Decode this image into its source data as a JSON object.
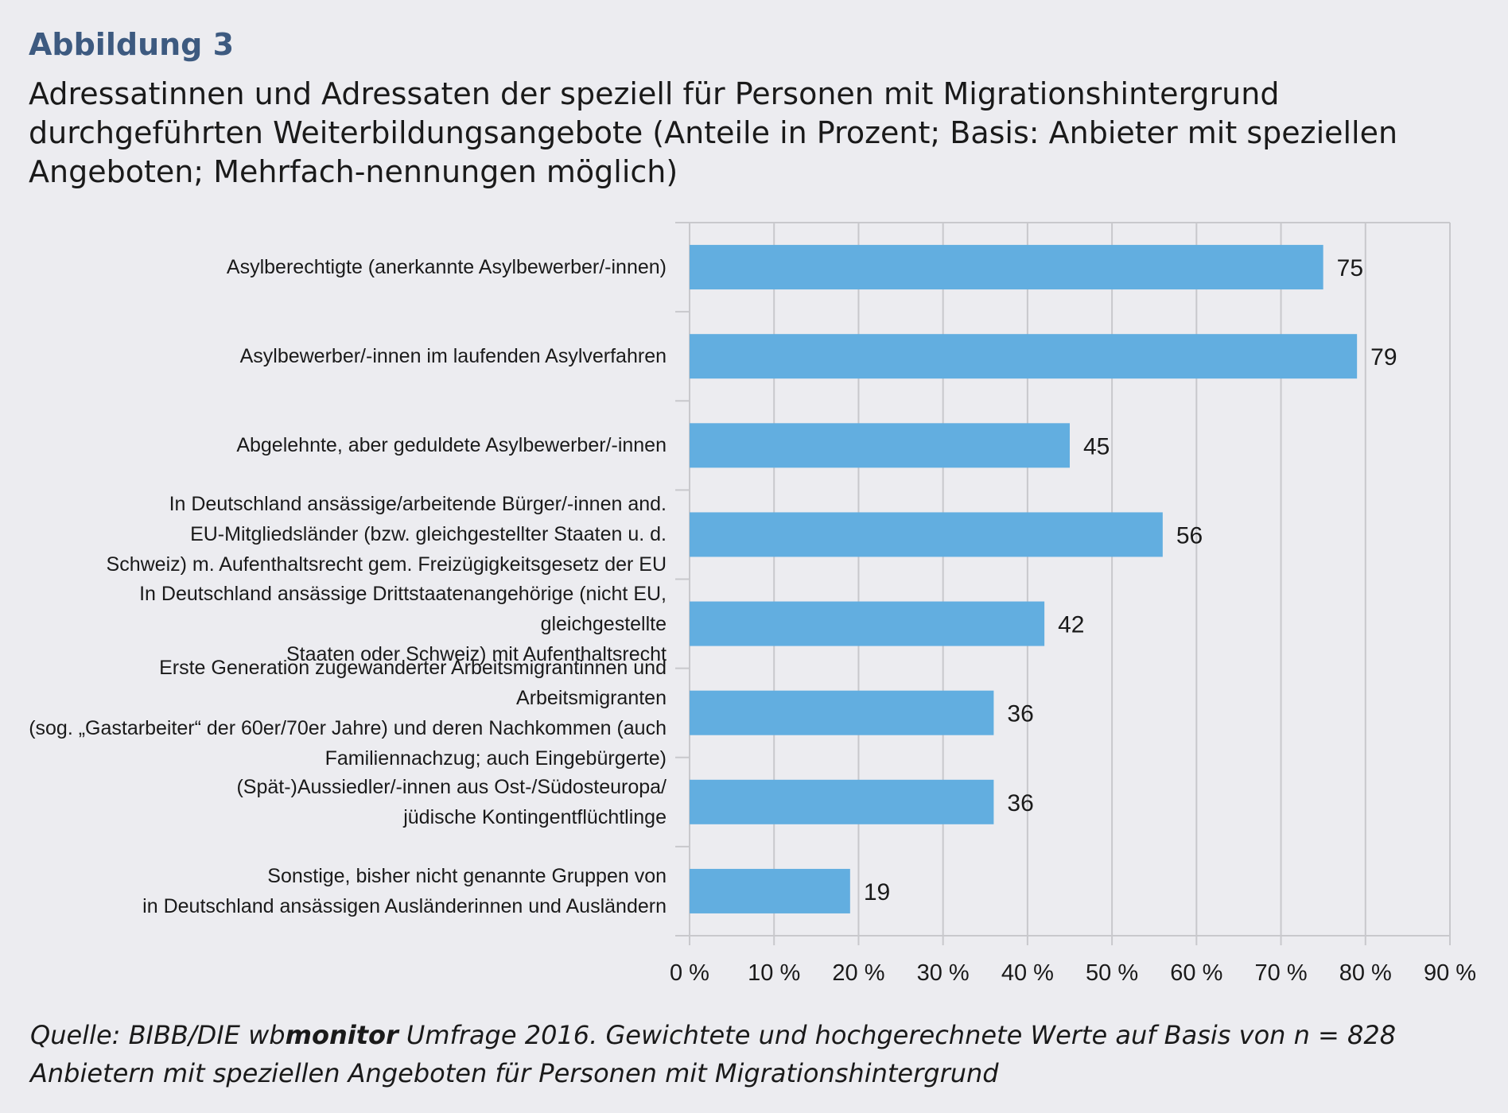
{
  "figure": {
    "label": "Abbildung 3",
    "title": "Adressatinnen und Adressaten der speziell für Personen mit Migrationshintergrund durchgeführten Weiterbildungsangebote (Anteile in Prozent; Basis: Anbieter mit speziellen Angeboten; Mehrfach-nennungen möglich)"
  },
  "source": {
    "prefix": "Quelle: BIBB/DIE wb",
    "brand_bold": "monitor",
    "suffix": " Umfrage 2016. Gewichtete und hochgerechnete Werte auf Basis von n = 828 Anbietern mit speziellen Angeboten für Personen mit Migrationshintergrund"
  },
  "colors": {
    "bar": "#62aee0",
    "grid": "#c8c8cc",
    "background": "#ececf0",
    "heading_accent": "#3d5a80"
  },
  "chart_data": {
    "type": "bar",
    "orientation": "horizontal",
    "categories": [
      "Asylberechtigte (anerkannte Asylbewerber/-innen)",
      "Asylbewerber/-innen im laufenden Asylverfahren",
      "Abgelehnte, aber geduldete Asylbewerber/-innen",
      "In Deutschland ansässige/arbeitende Bürger/-innen and. EU-Mitgliedsländer (bzw. gleichgestellter Staaten u. d. Schweiz) m. Aufenthaltsrecht gem. Freizügigkeitsgesetz der EU",
      "In Deutschland ansässige Drittstaatenangehörige (nicht EU, gleichgestellte Staaten oder Schweiz) mit Aufenthaltsrecht",
      "Erste Generation zugewanderter Arbeitsmigrantinnen und Arbeitsmigranten (sog. „Gastarbeiter“ der 60er/70er Jahre) und deren Nachkommen (auch Familiennachzug; auch Eingebürgerte)",
      "(Spät-)Aussiedler/-innen aus Ost-/Südosteuropa/ jüdische Kontingentflüchtlinge",
      "Sonstige, bisher nicht genannte Gruppen von in Deutschland ansässigen Ausländerinnen und Ausländern"
    ],
    "category_lines": [
      [
        "Asylberechtigte (anerkannte Asylbewerber/-innen)"
      ],
      [
        "Asylbewerber/-innen im laufenden Asylverfahren"
      ],
      [
        "Abgelehnte, aber geduldete Asylbewerber/-innen"
      ],
      [
        "In Deutschland ansässige/arbeitende Bürger/-innen and.",
        "EU-Mitgliedsländer (bzw. gleichgestellter Staaten u. d.",
        "Schweiz) m. Aufenthaltsrecht gem. Freizügigkeitsgesetz der EU"
      ],
      [
        "In Deutschland ansässige Drittstaatenangehörige (nicht EU, gleichgestellte",
        "Staaten oder Schweiz) mit Aufenthaltsrecht"
      ],
      [
        "Erste Generation zugewanderter Arbeitsmigrantinnen und Arbeitsmigranten",
        "(sog. „Gastarbeiter“ der 60er/70er Jahre) und deren Nachkommen (auch",
        "Familiennachzug; auch Eingebürgerte)"
      ],
      [
        "(Spät-)Aussiedler/-innen aus Ost-/Südosteuropa/",
        "jüdische Kontingentflüchtlinge"
      ],
      [
        "Sonstige, bisher nicht genannte Gruppen von",
        "in Deutschland ansässigen Ausländerinnen und Ausländern"
      ]
    ],
    "values": [
      75,
      79,
      45,
      56,
      42,
      36,
      36,
      19
    ],
    "data_labels": [
      "75",
      "79",
      "45",
      "56",
      "42",
      "36",
      "36",
      "19"
    ],
    "xlim": [
      0,
      90
    ],
    "x_ticks": [
      0,
      10,
      20,
      30,
      40,
      50,
      60,
      70,
      80,
      90
    ],
    "x_tick_labels": [
      "0 %",
      "10 %",
      "20 %",
      "30 %",
      "40 %",
      "50 %",
      "60 %",
      "70 %",
      "80 %",
      "90 %"
    ],
    "grid": true,
    "legend": "none"
  }
}
